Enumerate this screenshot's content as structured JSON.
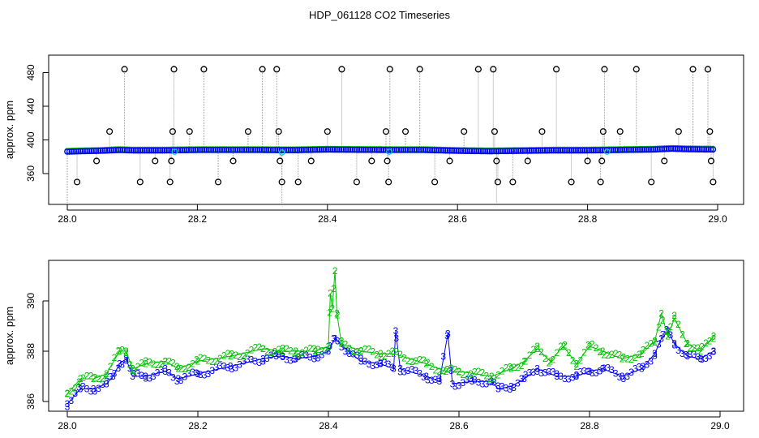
{
  "colors": {
    "blue": "#0000ff",
    "green": "#00c000",
    "cyan": "#00cccc",
    "black": "#000000",
    "spike": "#9a9a9a"
  },
  "chart_data": [
    {
      "type": "scatter",
      "title": "HDP_061128  CO2 Timeseries",
      "ylabel": "approx. ppm",
      "xlabel": "",
      "xlim": [
        28.0,
        29.0
      ],
      "ylim": [
        340,
        490
      ],
      "xticks": [
        "28.0",
        "28.2",
        "28.4",
        "28.6",
        "28.8",
        "29.0"
      ],
      "yticks": [
        "360",
        "400",
        "440",
        "480"
      ],
      "grid": false,
      "baseline": {
        "x": [
          28.0,
          28.02,
          28.05,
          28.08,
          28.1,
          28.15,
          28.2,
          28.25,
          28.3,
          28.33,
          28.35,
          28.4,
          28.45,
          28.5,
          28.55,
          28.6,
          28.65,
          28.7,
          28.75,
          28.8,
          28.85,
          28.9,
          28.93,
          28.95,
          29.0
        ],
        "y": [
          386,
          386.5,
          387,
          388,
          387.5,
          387.5,
          388,
          388,
          388,
          387.8,
          387.8,
          388.5,
          388.2,
          388,
          388,
          387,
          386.5,
          387,
          387.5,
          387.5,
          388,
          388.5,
          389.5,
          389,
          388.5
        ]
      },
      "spikes": [
        {
          "x": 28.015,
          "y": 350
        },
        {
          "x": 28.045,
          "y": 375
        },
        {
          "x": 28.065,
          "y": 410
        },
        {
          "x": 28.088,
          "y": 484
        },
        {
          "x": 28.112,
          "y": 350
        },
        {
          "x": 28.135,
          "y": 375
        },
        {
          "x": 28.158,
          "y": 350
        },
        {
          "x": 28.16,
          "y": 375
        },
        {
          "x": 28.162,
          "y": 410
        },
        {
          "x": 28.164,
          "y": 484
        },
        {
          "x": 28.188,
          "y": 410
        },
        {
          "x": 28.21,
          "y": 484
        },
        {
          "x": 28.232,
          "y": 350
        },
        {
          "x": 28.255,
          "y": 375
        },
        {
          "x": 28.278,
          "y": 410
        },
        {
          "x": 28.3,
          "y": 484
        },
        {
          "x": 28.322,
          "y": 484
        },
        {
          "x": 28.325,
          "y": 410
        },
        {
          "x": 28.327,
          "y": 375
        },
        {
          "x": 28.33,
          "y": 350
        },
        {
          "x": 28.355,
          "y": 350
        },
        {
          "x": 28.375,
          "y": 375
        },
        {
          "x": 28.4,
          "y": 410
        },
        {
          "x": 28.422,
          "y": 484
        },
        {
          "x": 28.445,
          "y": 350
        },
        {
          "x": 28.468,
          "y": 375
        },
        {
          "x": 28.49,
          "y": 410
        },
        {
          "x": 28.492,
          "y": 375
        },
        {
          "x": 28.494,
          "y": 350
        },
        {
          "x": 28.496,
          "y": 484
        },
        {
          "x": 28.52,
          "y": 410
        },
        {
          "x": 28.542,
          "y": 484
        },
        {
          "x": 28.565,
          "y": 350
        },
        {
          "x": 28.588,
          "y": 375
        },
        {
          "x": 28.61,
          "y": 410
        },
        {
          "x": 28.632,
          "y": 484
        },
        {
          "x": 28.655,
          "y": 484
        },
        {
          "x": 28.657,
          "y": 410
        },
        {
          "x": 28.66,
          "y": 375
        },
        {
          "x": 28.662,
          "y": 350
        },
        {
          "x": 28.685,
          "y": 350
        },
        {
          "x": 28.708,
          "y": 375
        },
        {
          "x": 28.73,
          "y": 410
        },
        {
          "x": 28.752,
          "y": 484
        },
        {
          "x": 28.775,
          "y": 350
        },
        {
          "x": 28.8,
          "y": 375
        },
        {
          "x": 28.82,
          "y": 350
        },
        {
          "x": 28.822,
          "y": 375
        },
        {
          "x": 28.824,
          "y": 410
        },
        {
          "x": 28.826,
          "y": 484
        },
        {
          "x": 28.85,
          "y": 410
        },
        {
          "x": 28.875,
          "y": 484
        },
        {
          "x": 28.898,
          "y": 350
        },
        {
          "x": 28.918,
          "y": 375
        },
        {
          "x": 28.94,
          "y": 410
        },
        {
          "x": 28.962,
          "y": 484
        },
        {
          "x": 28.985,
          "y": 484
        },
        {
          "x": 28.988,
          "y": 410
        },
        {
          "x": 28.99,
          "y": 375
        },
        {
          "x": 28.993,
          "y": 350
        }
      ],
      "cyan_points": [
        {
          "x": 28.165,
          "y": 386
        },
        {
          "x": 28.33,
          "y": 385
        },
        {
          "x": 28.495,
          "y": 386
        },
        {
          "x": 28.83,
          "y": 386
        }
      ]
    },
    {
      "type": "scatter",
      "title": "",
      "ylabel": "approx. ppm",
      "xlabel": "",
      "xlim": [
        28.0,
        29.0
      ],
      "ylim": [
        385.5,
        391.5
      ],
      "xticks": [
        "28.0",
        "28.2",
        "28.4",
        "28.6",
        "28.8",
        "29.0"
      ],
      "yticks": [
        "386",
        "388",
        "390"
      ],
      "grid": false,
      "series": [
        {
          "marker": "3",
          "color": "blue",
          "x": [
            28.0,
            28.02,
            28.04,
            28.06,
            28.07,
            28.08,
            28.09,
            28.1,
            28.12,
            28.15,
            28.17,
            28.2,
            28.25,
            28.3,
            28.32,
            28.33,
            28.35,
            28.38,
            28.4,
            28.41,
            28.43,
            28.45,
            28.48,
            28.5,
            28.503,
            28.51,
            28.55,
            28.57,
            28.583,
            28.59,
            28.62,
            28.65,
            28.66,
            28.68,
            28.7,
            28.72,
            28.75,
            28.78,
            28.8,
            28.82,
            28.85,
            28.88,
            28.9,
            28.91,
            28.92,
            28.93,
            28.95,
            28.97,
            28.99
          ],
          "y": [
            385.9,
            386.5,
            386.5,
            386.7,
            387.0,
            387.5,
            387.7,
            387.0,
            387.0,
            387.2,
            386.9,
            387.1,
            387.4,
            387.7,
            387.8,
            387.8,
            387.7,
            387.8,
            388.0,
            388.5,
            388.0,
            387.6,
            387.5,
            387.3,
            388.8,
            387.3,
            387.0,
            386.8,
            388.7,
            386.7,
            386.8,
            386.8,
            386.5,
            386.6,
            386.9,
            387.3,
            387.0,
            387.0,
            387.2,
            387.3,
            387.0,
            387.3,
            387.9,
            388.5,
            388.8,
            388.3,
            387.8,
            387.7,
            388.0
          ]
        },
        {
          "marker": "2",
          "color": "green",
          "x": [
            28.0,
            28.02,
            28.04,
            28.06,
            28.08,
            28.09,
            28.1,
            28.12,
            28.15,
            28.17,
            28.2,
            28.25,
            28.3,
            28.33,
            28.35,
            28.38,
            28.4,
            28.403,
            28.406,
            28.41,
            28.413,
            28.42,
            28.45,
            28.48,
            28.5,
            28.55,
            28.58,
            28.6,
            28.65,
            28.68,
            28.7,
            28.72,
            28.74,
            28.76,
            28.78,
            28.8,
            28.82,
            28.85,
            28.88,
            28.9,
            28.91,
            28.92,
            28.93,
            28.95,
            28.97,
            28.99
          ],
          "y": [
            386.3,
            386.9,
            386.9,
            387.1,
            388.0,
            388.0,
            387.3,
            387.5,
            387.6,
            387.3,
            387.6,
            387.8,
            388.1,
            388.0,
            388.0,
            388.0,
            388.2,
            390.3,
            389.7,
            391.2,
            389.5,
            388.3,
            388.0,
            387.9,
            387.9,
            387.5,
            387.2,
            387.2,
            387.0,
            387.3,
            387.6,
            388.1,
            387.6,
            388.2,
            387.5,
            388.2,
            388.0,
            387.7,
            387.9,
            388.4,
            389.5,
            388.6,
            389.3,
            388.3,
            388.0,
            388.6
          ]
        }
      ]
    }
  ]
}
